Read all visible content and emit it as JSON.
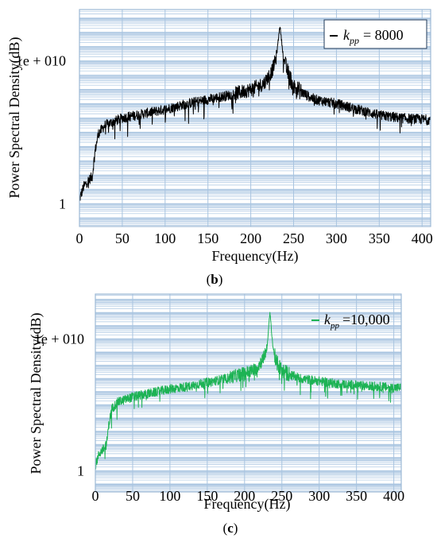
{
  "chart_data": [
    {
      "panel": "(b)",
      "type": "line",
      "xlabel": "Frequency(Hz)",
      "ylabel": "Power Spectral Density(dB)",
      "xlim": [
        0,
        410
      ],
      "xticks": [
        0,
        50,
        100,
        150,
        200,
        250,
        300,
        350,
        400
      ],
      "yscale": "log",
      "ylim_exponent": [
        -1.6,
        13.6
      ],
      "ytick_labels": [
        {
          "exponent": 0,
          "label": "1"
        },
        {
          "exponent": 10,
          "label": "1e + 010"
        }
      ],
      "grid": true,
      "legend": {
        "position": "top-right",
        "symbol": "k",
        "subscript": "pp",
        "equals": "= 8000"
      },
      "series": [
        {
          "name": "k_pp = 8000",
          "color": "#000000",
          "x": [
            0,
            5,
            10,
            15,
            18,
            22,
            30,
            50,
            75,
            100,
            125,
            150,
            175,
            200,
            215,
            225,
            230,
            234,
            238,
            242,
            250,
            265,
            275,
            300,
            325,
            350,
            375,
            400,
            410
          ],
          "y_exponent": [
            0.3,
            1.2,
            1.6,
            1.9,
            3.6,
            4.9,
            5.5,
            6.0,
            6.3,
            6.6,
            7.0,
            7.3,
            7.6,
            8.0,
            8.4,
            9.3,
            10.3,
            12.5,
            10.3,
            9.4,
            8.2,
            7.6,
            7.3,
            7.0,
            6.6,
            6.2,
            6.0,
            5.9,
            5.9
          ]
        }
      ]
    },
    {
      "panel": "(c)",
      "type": "line",
      "xlabel": "Frequency(Hz)",
      "ylabel": "Power Spectral Density(dB)",
      "xlim": [
        0,
        410
      ],
      "xticks": [
        0,
        50,
        100,
        150,
        200,
        250,
        300,
        350,
        400
      ],
      "yscale": "log",
      "ylim_exponent": [
        -1.6,
        13.4
      ],
      "ytick_labels": [
        {
          "exponent": 0,
          "label": "1"
        },
        {
          "exponent": 10,
          "label": "1e + 010"
        }
      ],
      "grid": true,
      "legend": {
        "position": "top-right",
        "symbol": "k",
        "subscript": "pp",
        "equals": "=10,000"
      },
      "series": [
        {
          "name": "k_pp =10,000",
          "color": "#1db354",
          "x": [
            0,
            5,
            10,
            15,
            18,
            22,
            30,
            50,
            75,
            100,
            125,
            150,
            175,
            200,
            215,
            225,
            230,
            234,
            238,
            242,
            250,
            265,
            275,
            300,
            325,
            350,
            375,
            400,
            410
          ],
          "y_exponent": [
            0.4,
            1.3,
            1.6,
            2.0,
            3.5,
            4.7,
            5.2,
            5.6,
            5.9,
            6.2,
            6.4,
            6.7,
            7.0,
            7.4,
            7.7,
            8.5,
            9.3,
            12.0,
            9.4,
            8.3,
            7.6,
            7.2,
            7.0,
            6.8,
            6.6,
            6.5,
            6.4,
            6.3,
            6.3
          ]
        }
      ]
    }
  ],
  "captions": {
    "b": "(b)",
    "c": "(c)"
  },
  "colors": {
    "grid": "#a8c4e0",
    "frame": "#9db9d6",
    "black_series": "#000000",
    "green_series": "#1db354"
  }
}
